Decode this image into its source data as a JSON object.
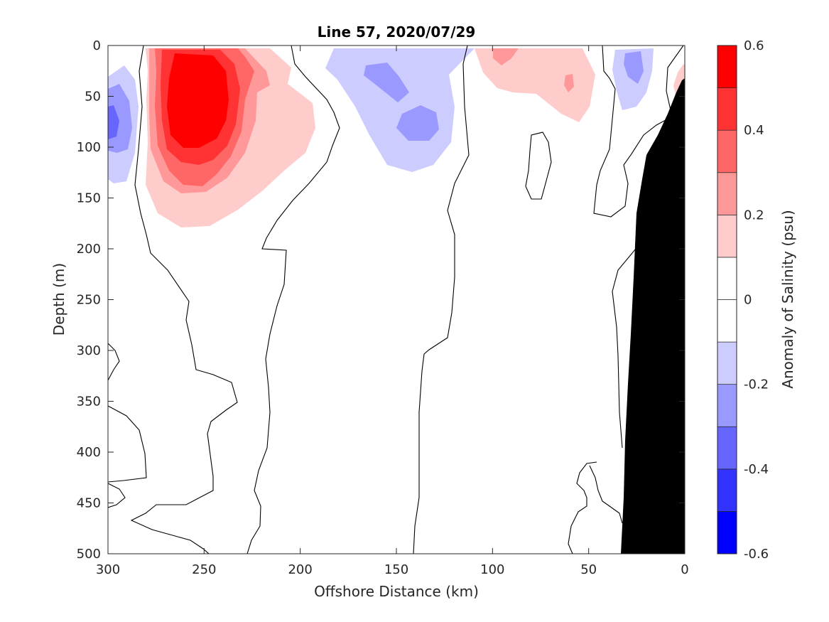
{
  "chart_data": {
    "type": "contour",
    "title": "Line 57, 2020/07/29",
    "xlabel": "Offshore Distance (km)",
    "ylabel": "Depth (m)",
    "xlim": [
      300,
      0
    ],
    "ylim": [
      0,
      500
    ],
    "x_ticks": [
      300,
      250,
      200,
      150,
      100,
      50,
      0
    ],
    "y_ticks": [
      0,
      50,
      100,
      150,
      200,
      250,
      300,
      350,
      400,
      450,
      500
    ],
    "y_reversed": true,
    "x_reversed": true,
    "colorbar": {
      "label": "Anomaly of Salinity (psu)",
      "range": [
        -0.6,
        0.6
      ],
      "levels": [
        -0.6,
        -0.5,
        -0.4,
        -0.3,
        -0.2,
        -0.1,
        0.1,
        0.2,
        0.3,
        0.4,
        0.5,
        0.6
      ],
      "tick_values": [
        0.6,
        0.4,
        0.2,
        0,
        -0.2,
        -0.4,
        -0.6
      ],
      "tick_labels": [
        "0.6",
        "0.4",
        "0.2",
        "0",
        "-0.2",
        "-0.4",
        "-0.6"
      ],
      "colors": [
        "#0000ff",
        "#3333ff",
        "#6666ff",
        "#9999ff",
        "#ccccff",
        "#ffffff",
        "#ffffff",
        "#ffcccc",
        "#ff9999",
        "#ff6666",
        "#ff3333",
        "#ff0000"
      ]
    },
    "features": [
      {
        "name": "salinity maximum",
        "center_km": 255,
        "center_depth_m": 60,
        "peak_psu": 0.6
      },
      {
        "name": "salinity minimum offshore",
        "center_km": 295,
        "center_depth_m": 70,
        "peak_psu": -0.4
      },
      {
        "name": "salinity minimum mid-section",
        "center_km": 140,
        "center_depth_m": 80,
        "peak_psu": -0.3
      },
      {
        "name": "positive anomaly nearshore",
        "center_km": 80,
        "center_depth_m": 30,
        "peak_psu": 0.3
      },
      {
        "name": "negative anomaly nearshore",
        "center_km": 25,
        "center_depth_m": 20,
        "peak_psu": -0.3
      },
      {
        "name": "bottom topography (shelf/slope)",
        "fill": "#000000"
      }
    ]
  }
}
